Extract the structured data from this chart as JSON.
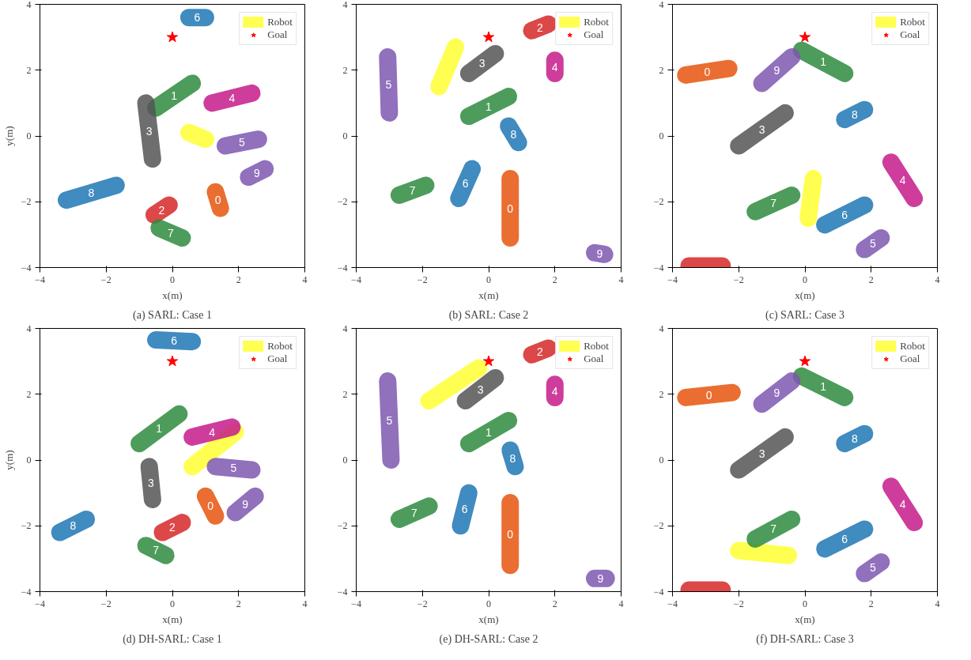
{
  "chart_data": [
    {
      "type": "line",
      "title": "(a) SARL: Case 1",
      "xlabel": "x(m)",
      "ylabel": "y(m)",
      "xlim": [
        -4,
        4
      ],
      "ylim": [
        -4,
        4
      ],
      "xticks": [
        -4,
        -2,
        0,
        2,
        4
      ],
      "yticks": [
        -4,
        -2,
        0,
        2,
        4
      ],
      "grid": false,
      "legend": "top right",
      "series": [
        {
          "name": "Robot",
          "color": "#ffff33",
          "x": [
            0.5,
            1.0
          ],
          "values": [
            0.1,
            -0.1
          ]
        },
        {
          "name": "Goal",
          "type": "scatter",
          "marker": "star",
          "color": "#ff0000",
          "x": [
            0
          ],
          "values": [
            3
          ]
        },
        {
          "name": "0",
          "color": "#e6550d",
          "x": [
            1.45,
            1.3
          ],
          "values": [
            -2.2,
            -1.7
          ]
        },
        {
          "name": "1",
          "color": "#2e8b3e",
          "x": [
            0.6,
            -0.5
          ],
          "values": [
            1.6,
            0.85
          ]
        },
        {
          "name": "2",
          "color": "#d62728",
          "x": [
            -0.1,
            -0.55
          ],
          "values": [
            -2.1,
            -2.4
          ]
        },
        {
          "name": "3",
          "color": "#555555",
          "x": [
            -0.8,
            -0.6
          ],
          "values": [
            1.0,
            -0.7
          ]
        },
        {
          "name": "4",
          "color": "#c51b8a",
          "x": [
            2.4,
            1.2
          ],
          "values": [
            1.3,
            1.0
          ]
        },
        {
          "name": "5",
          "color": "#7e57b0",
          "x": [
            2.6,
            1.6
          ],
          "values": [
            -0.1,
            -0.3
          ]
        },
        {
          "name": "6",
          "color": "#1f77b4",
          "x": [
            1.0,
            0.5
          ],
          "values": [
            3.6,
            3.6
          ]
        },
        {
          "name": "7",
          "color": "#2e8b3e",
          "x": [
            0.3,
            -0.4
          ],
          "values": [
            -3.1,
            -2.8
          ]
        },
        {
          "name": "8",
          "color": "#1f77b4",
          "x": [
            -1.7,
            -3.2
          ],
          "values": [
            -1.5,
            -1.95
          ]
        },
        {
          "name": "9",
          "color": "#7e57b0",
          "x": [
            2.8,
            2.3
          ],
          "values": [
            -1.0,
            -1.25
          ]
        }
      ]
    },
    {
      "type": "line",
      "title": "(b) SARL: Case 2",
      "xlabel": "x(m)",
      "xlim": [
        -4,
        4
      ],
      "ylim": [
        -4,
        4
      ],
      "xticks": [
        -4,
        -2,
        0,
        2,
        4
      ],
      "yticks": [
        -4,
        -2,
        0,
        2,
        4
      ],
      "grid": false,
      "legend": "top right",
      "series": [
        {
          "name": "Robot",
          "color": "#ffff33",
          "x": [
            -1.5,
            -1.0
          ],
          "values": [
            1.5,
            2.7
          ]
        },
        {
          "name": "Goal",
          "type": "scatter",
          "marker": "star",
          "color": "#ff0000",
          "x": [
            0
          ],
          "values": [
            3
          ]
        },
        {
          "name": "0",
          "color": "#e6550d",
          "x": [
            0.65,
            0.65
          ],
          "values": [
            -1.3,
            -3.1
          ]
        },
        {
          "name": "1",
          "color": "#2e8b3e",
          "x": [
            -0.6,
            0.6
          ],
          "values": [
            0.6,
            1.2
          ]
        },
        {
          "name": "2",
          "color": "#d62728",
          "x": [
            1.8,
            1.3
          ],
          "values": [
            3.4,
            3.2
          ]
        },
        {
          "name": "3",
          "color": "#555555",
          "x": [
            -0.6,
            0.2
          ],
          "values": [
            1.9,
            2.5
          ]
        },
        {
          "name": "4",
          "color": "#c51b8a",
          "x": [
            2.0,
            2.0
          ],
          "values": [
            1.9,
            2.3
          ]
        },
        {
          "name": "5",
          "color": "#7e57b0",
          "x": [
            -3.0,
            -3.05
          ],
          "values": [
            0.7,
            2.4
          ]
        },
        {
          "name": "6",
          "color": "#1f77b4",
          "x": [
            -0.9,
            -0.5
          ],
          "values": [
            -1.9,
            -1.0
          ]
        },
        {
          "name": "7",
          "color": "#2e8b3e",
          "x": [
            -1.9,
            -2.7
          ],
          "values": [
            -1.5,
            -1.8
          ]
        },
        {
          "name": "8",
          "color": "#1f77b4",
          "x": [
            0.6,
            0.9
          ],
          "values": [
            0.3,
            -0.2
          ]
        },
        {
          "name": "9",
          "color": "#7e57b0",
          "x": [
            3.2,
            3.5
          ],
          "values": [
            -3.55,
            -3.6
          ]
        }
      ]
    },
    {
      "type": "line",
      "title": "(c) SARL: Case 3",
      "xlabel": "x(m)",
      "xlim": [
        -4,
        4
      ],
      "ylim": [
        -4,
        4
      ],
      "xticks": [
        -4,
        -2,
        0,
        2,
        4
      ],
      "yticks": [
        -4,
        -2,
        0,
        2,
        4
      ],
      "grid": false,
      "legend": "top right",
      "series": [
        {
          "name": "Robot",
          "color": "#ffff33",
          "x": [
            0.1,
            0.25
          ],
          "values": [
            -2.5,
            -1.3
          ]
        },
        {
          "name": "Goal",
          "type": "scatter",
          "marker": "star",
          "color": "#ff0000",
          "x": [
            0
          ],
          "values": [
            3
          ]
        },
        {
          "name": "0",
          "color": "#e6550d",
          "x": [
            -3.6,
            -2.3
          ],
          "values": [
            1.85,
            2.05
          ]
        },
        {
          "name": "1",
          "color": "#2e8b3e",
          "x": [
            -0.1,
            1.2
          ],
          "values": [
            2.6,
            1.9
          ]
        },
        {
          "color": "#d62728",
          "x": [
            -2.5,
            -3.5
          ],
          "values": [
            -3.95,
            -3.95
          ]
        },
        {
          "name": "3",
          "color": "#555555",
          "x": [
            -2.0,
            -0.6
          ],
          "values": [
            -0.3,
            0.7
          ]
        },
        {
          "name": "4",
          "color": "#c51b8a",
          "x": [
            3.3,
            2.6
          ],
          "values": [
            -1.9,
            -0.8
          ]
        },
        {
          "name": "5",
          "color": "#7e57b0",
          "x": [
            2.3,
            1.8
          ],
          "values": [
            -3.1,
            -3.45
          ]
        },
        {
          "name": "6",
          "color": "#1f77b4",
          "x": [
            1.8,
            0.6
          ],
          "values": [
            -2.1,
            -2.7
          ]
        },
        {
          "name": "7",
          "color": "#2e8b3e",
          "x": [
            -1.5,
            -0.4
          ],
          "values": [
            -2.3,
            -1.8
          ]
        },
        {
          "name": "8",
          "color": "#1f77b4",
          "x": [
            1.8,
            1.2
          ],
          "values": [
            0.8,
            0.5
          ]
        },
        {
          "name": "9",
          "color": "#7e57b0",
          "x": [
            -1.3,
            -0.4
          ],
          "values": [
            1.6,
            2.4
          ]
        }
      ]
    },
    {
      "type": "line",
      "title": "(d) DH-SARL: Case 1",
      "xlabel": "x(m)",
      "ylabel": "y(m)",
      "xlim": [
        -4,
        4
      ],
      "ylim": [
        -4,
        4
      ],
      "xticks": [
        -4,
        -2,
        0,
        2,
        4
      ],
      "yticks": [
        -4,
        -2,
        0,
        2,
        4
      ],
      "grid": false,
      "legend": "top right",
      "series": [
        {
          "name": "Robot",
          "color": "#ffff33",
          "x": [
            0.6,
            1.9
          ],
          "values": [
            -0.2,
            0.85
          ]
        },
        {
          "name": "Goal",
          "type": "scatter",
          "marker": "star",
          "color": "#ff0000",
          "x": [
            0
          ],
          "values": [
            3
          ]
        },
        {
          "name": "0",
          "color": "#e6550d",
          "x": [
            1.3,
            1.0
          ],
          "values": [
            -1.7,
            -1.1
          ]
        },
        {
          "name": "1",
          "color": "#2e8b3e",
          "x": [
            0.2,
            -1.0
          ],
          "values": [
            1.4,
            0.5
          ]
        },
        {
          "name": "2",
          "color": "#d62728",
          "x": [
            0.3,
            -0.3
          ],
          "values": [
            -1.9,
            -2.2
          ]
        },
        {
          "name": "3",
          "color": "#555555",
          "x": [
            -0.7,
            -0.6
          ],
          "values": [
            -0.2,
            -1.2
          ]
        },
        {
          "name": "4",
          "color": "#c51b8a",
          "x": [
            1.8,
            0.6
          ],
          "values": [
            1.0,
            0.7
          ]
        },
        {
          "name": "5",
          "color": "#7e57b0",
          "x": [
            2.4,
            1.3
          ],
          "values": [
            -0.3,
            -0.2
          ]
        },
        {
          "name": "6",
          "color": "#1f77b4",
          "x": [
            0.6,
            -0.5
          ],
          "values": [
            3.6,
            3.65
          ]
        },
        {
          "name": "7",
          "color": "#2e8b3e",
          "x": [
            -0.2,
            -0.8
          ],
          "values": [
            -2.9,
            -2.6
          ]
        },
        {
          "name": "8",
          "color": "#1f77b4",
          "x": [
            -2.6,
            -3.4
          ],
          "values": [
            -1.8,
            -2.2
          ]
        },
        {
          "name": "9",
          "color": "#7e57b0",
          "x": [
            2.5,
            1.9
          ],
          "values": [
            -1.1,
            -1.6
          ]
        }
      ]
    },
    {
      "type": "line",
      "title": "(e) DH-SARL: Case 2",
      "xlabel": "x(m)",
      "xlim": [
        -4,
        4
      ],
      "ylim": [
        -4,
        4
      ],
      "xticks": [
        -4,
        -2,
        0,
        2,
        4
      ],
      "yticks": [
        -4,
        -2,
        0,
        2,
        4
      ],
      "grid": false,
      "legend": "top right",
      "series": [
        {
          "name": "Robot",
          "color": "#ffff33",
          "x": [
            -1.8,
            -0.3
          ],
          "values": [
            1.8,
            2.8
          ]
        },
        {
          "name": "Goal",
          "type": "scatter",
          "marker": "star",
          "color": "#ff0000",
          "x": [
            0
          ],
          "values": [
            3
          ]
        },
        {
          "name": "0",
          "color": "#e6550d",
          "x": [
            0.65,
            0.65
          ],
          "values": [
            -1.3,
            -3.2
          ]
        },
        {
          "name": "1",
          "color": "#2e8b3e",
          "x": [
            -0.6,
            0.6
          ],
          "values": [
            0.5,
            1.2
          ]
        },
        {
          "name": "2",
          "color": "#d62728",
          "x": [
            1.8,
            1.3
          ],
          "values": [
            3.4,
            3.2
          ]
        },
        {
          "name": "3",
          "color": "#555555",
          "x": [
            -0.7,
            0.2
          ],
          "values": [
            1.8,
            2.5
          ]
        },
        {
          "name": "4",
          "color": "#c51b8a",
          "x": [
            2.0,
            2.0
          ],
          "values": [
            1.9,
            2.3
          ]
        },
        {
          "name": "5",
          "color": "#7e57b0",
          "x": [
            -2.95,
            -3.05
          ],
          "values": [
            0.0,
            2.4
          ]
        },
        {
          "name": "6",
          "color": "#1f77b4",
          "x": [
            -0.85,
            -0.6
          ],
          "values": [
            -2.0,
            -1.0
          ]
        },
        {
          "name": "7",
          "color": "#2e8b3e",
          "x": [
            -1.8,
            -2.7
          ],
          "values": [
            -1.4,
            -1.8
          ]
        },
        {
          "name": "8",
          "color": "#1f77b4",
          "x": [
            0.65,
            0.8
          ],
          "values": [
            0.3,
            -0.2
          ]
        },
        {
          "name": "9",
          "color": "#7e57b0",
          "x": [
            3.2,
            3.55
          ],
          "values": [
            -3.6,
            -3.6
          ]
        }
      ]
    },
    {
      "type": "line",
      "title": "(f) DH-SARL: Case 3",
      "xlabel": "x(m)",
      "xlim": [
        -4,
        4
      ],
      "ylim": [
        -4,
        4
      ],
      "xticks": [
        -4,
        -2,
        0,
        2,
        4
      ],
      "yticks": [
        -4,
        -2,
        0,
        2,
        4
      ],
      "grid": false,
      "legend": "top right",
      "series": [
        {
          "name": "Robot",
          "color": "#ffff33",
          "x": [
            -0.5,
            -2.0
          ],
          "values": [
            -2.9,
            -2.75
          ]
        },
        {
          "name": "Goal",
          "type": "scatter",
          "marker": "star",
          "color": "#ff0000",
          "x": [
            0
          ],
          "values": [
            3
          ]
        },
        {
          "name": "0",
          "color": "#e6550d",
          "x": [
            -3.6,
            -2.2
          ],
          "values": [
            1.9,
            2.05
          ]
        },
        {
          "name": "1",
          "color": "#2e8b3e",
          "x": [
            -0.1,
            1.2
          ],
          "values": [
            2.55,
            1.9
          ]
        },
        {
          "color": "#d62728",
          "x": [
            -2.5,
            -3.5
          ],
          "values": [
            -3.95,
            -3.95
          ]
        },
        {
          "name": "3",
          "color": "#555555",
          "x": [
            -2.0,
            -0.6
          ],
          "values": [
            -0.3,
            0.7
          ]
        },
        {
          "name": "4",
          "color": "#c51b8a",
          "x": [
            3.3,
            2.6
          ],
          "values": [
            -1.9,
            -0.8
          ]
        },
        {
          "name": "5",
          "color": "#7e57b0",
          "x": [
            2.3,
            1.8
          ],
          "values": [
            -3.1,
            -3.45
          ]
        },
        {
          "name": "6",
          "color": "#1f77b4",
          "x": [
            1.8,
            0.6
          ],
          "values": [
            -2.1,
            -2.7
          ]
        },
        {
          "name": "7",
          "color": "#2e8b3e",
          "x": [
            -1.5,
            -0.4
          ],
          "values": [
            -2.4,
            -1.8
          ]
        },
        {
          "name": "8",
          "color": "#1f77b4",
          "x": [
            1.8,
            1.2
          ],
          "values": [
            0.8,
            0.5
          ]
        },
        {
          "name": "9",
          "color": "#7e57b0",
          "x": [
            -1.3,
            -0.4
          ],
          "values": [
            1.7,
            2.4
          ]
        }
      ]
    }
  ]
}
